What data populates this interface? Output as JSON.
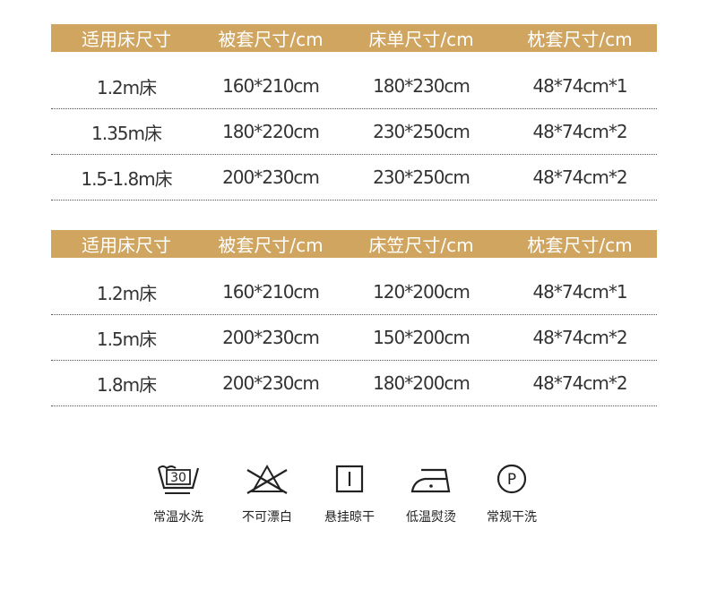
{
  "tables": [
    {
      "headers": [
        "适用床尺寸",
        "被套尺寸/cm",
        "床单尺寸/cm",
        "枕套尺寸/cm"
      ],
      "rows": [
        [
          "1.2m床",
          "160*210cm",
          "180*230cm",
          "48*74cm*1"
        ],
        [
          "1.35m床",
          "180*220cm",
          "230*250cm",
          "48*74cm*2"
        ],
        [
          "1.5-1.8m床",
          "200*230cm",
          "230*250cm",
          "48*74cm*2"
        ]
      ]
    },
    {
      "headers": [
        "适用床尺寸",
        "被套尺寸/cm",
        "床笠尺寸/cm",
        "枕套尺寸/cm"
      ],
      "rows": [
        [
          "1.2m床",
          "160*210cm",
          "120*200cm",
          "48*74cm*1"
        ],
        [
          "1.5m床",
          "200*230cm",
          "150*200cm",
          "48*74cm*2"
        ],
        [
          "1.8m床",
          "200*230cm",
          "180*200cm",
          "48*74cm*2"
        ]
      ]
    }
  ],
  "care": [
    {
      "icon": "wash-30-icon",
      "label": "常温水洗",
      "temp": "30"
    },
    {
      "icon": "no-bleach-icon",
      "label": "不可漂白"
    },
    {
      "icon": "hang-dry-icon",
      "label": "悬挂晾干"
    },
    {
      "icon": "low-iron-icon",
      "label": "低温熨烫"
    },
    {
      "icon": "dry-clean-p-icon",
      "label": "常规干洗",
      "letter": "P"
    }
  ],
  "colors": {
    "header": "#cfa560"
  }
}
